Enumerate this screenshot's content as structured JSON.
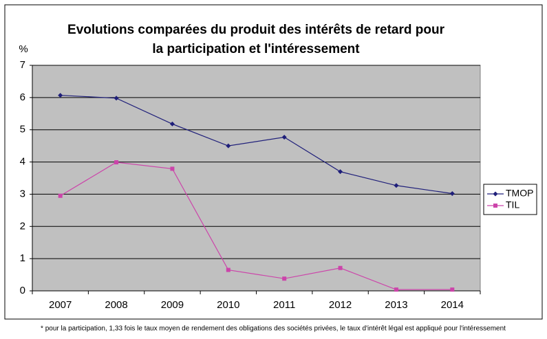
{
  "chart_data": {
    "type": "line",
    "title": [
      "Evolutions comparées du produit des intérêts de retard pour",
      "la participation et l'intéressement"
    ],
    "y_label": "%",
    "footnote": "* pour la participation, 1,33 fois le taux moyen de rendement des obligations des sociétés privées, le taux d'intérêt légal est appliqué pour l'intéressement",
    "categories": [
      "2007",
      "2008",
      "2009",
      "2010",
      "2011",
      "2012",
      "2013",
      "2014"
    ],
    "series": [
      {
        "name": "TMOP",
        "color": "#1f1f7a",
        "marker": "diamond",
        "values": [
          6.07,
          5.98,
          5.18,
          4.5,
          4.77,
          3.7,
          3.27,
          3.02
        ]
      },
      {
        "name": "TIL",
        "color": "#cc44aa",
        "marker": "square",
        "values": [
          2.95,
          3.99,
          3.79,
          0.65,
          0.38,
          0.71,
          0.04,
          0.04
        ]
      }
    ],
    "ylim": [
      0,
      7
    ],
    "yticks": [
      0,
      1,
      2,
      3,
      4,
      5,
      6,
      7
    ],
    "grid": true,
    "legend": "right"
  }
}
